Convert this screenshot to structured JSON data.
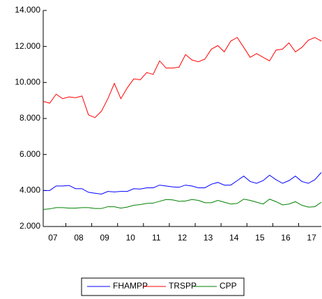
{
  "chart_data": {
    "type": "line",
    "categories": [
      "07",
      null,
      null,
      null,
      "08",
      null,
      null,
      null,
      "09",
      null,
      null,
      null,
      "10",
      null,
      null,
      null,
      "11",
      null,
      null,
      null,
      "12",
      null,
      null,
      null,
      "13",
      null,
      null,
      null,
      "14",
      null,
      null,
      null,
      "15",
      null,
      null,
      null,
      "16",
      null,
      null,
      null,
      "17",
      null,
      null,
      null
    ],
    "series": [
      {
        "name": "FHAMPP",
        "color": "#0000ff",
        "values": [
          4000,
          4000,
          4250,
          4250,
          4280,
          4100,
          4100,
          3900,
          3850,
          3800,
          3950,
          3920,
          3950,
          3950,
          4100,
          4080,
          4150,
          4150,
          4300,
          4250,
          4200,
          4180,
          4300,
          4250,
          4150,
          4150,
          4350,
          4450,
          4300,
          4300,
          4550,
          4800,
          4500,
          4400,
          4550,
          4850,
          4600,
          4400,
          4550,
          4800,
          4500,
          4400,
          4600,
          5000
        ]
      },
      {
        "name": "TRSPP",
        "color": "#ff0000",
        "values": [
          8950,
          8850,
          9350,
          9100,
          9200,
          9150,
          9250,
          8200,
          8050,
          8400,
          9100,
          9950,
          9100,
          9700,
          10200,
          10150,
          10550,
          10450,
          11200,
          10800,
          10800,
          10850,
          11550,
          11250,
          11150,
          11300,
          11850,
          12050,
          11700,
          12300,
          12500,
          11950,
          11400,
          11600,
          11400,
          11200,
          11800,
          11850,
          12200,
          11700,
          11950,
          12350,
          12500,
          12300
        ]
      },
      {
        "name": "CPP",
        "color": "#008000",
        "values": [
          2950,
          2980,
          3050,
          3050,
          3020,
          3020,
          3050,
          3050,
          3000,
          3000,
          3100,
          3100,
          3020,
          3080,
          3180,
          3220,
          3280,
          3300,
          3400,
          3500,
          3480,
          3400,
          3420,
          3500,
          3450,
          3320,
          3320,
          3450,
          3350,
          3250,
          3280,
          3520,
          3450,
          3350,
          3250,
          3520,
          3380,
          3200,
          3250,
          3380,
          3180,
          3080,
          3100,
          3350
        ]
      }
    ],
    "ylim": [
      2000,
      14000
    ],
    "yticks": [
      {
        "value": 2000,
        "label": "2.000"
      },
      {
        "value": 4000,
        "label": "4.000"
      },
      {
        "value": 6000,
        "label": "6.000"
      },
      {
        "value": 8000,
        "label": "8.000"
      },
      {
        "value": 10000,
        "label": "10.000"
      },
      {
        "value": 12000,
        "label": "12.000"
      },
      {
        "value": 14000,
        "label": "14.000"
      }
    ],
    "legend": "bottom"
  }
}
